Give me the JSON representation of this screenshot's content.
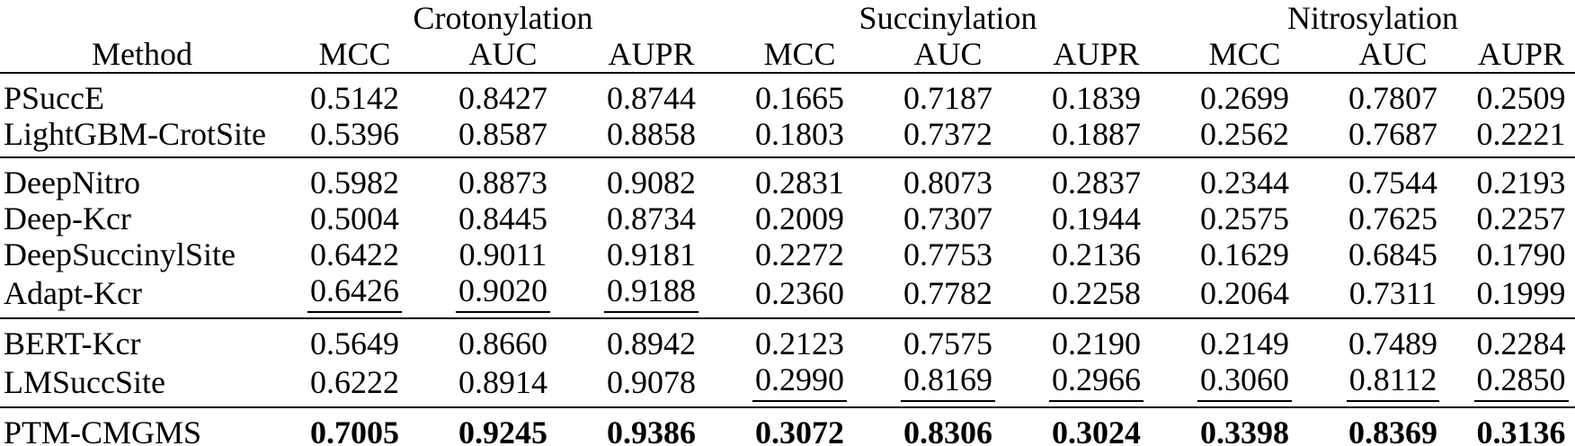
{
  "table": {
    "method_header": "Method",
    "groups": [
      {
        "label": "Crotonylation",
        "metrics": [
          "MCC",
          "AUC",
          "AUPR"
        ]
      },
      {
        "label": "Succinylation",
        "metrics": [
          "MCC",
          "AUC",
          "AUPR"
        ]
      },
      {
        "label": "Nitrosylation",
        "metrics": [
          "MCC",
          "AUC",
          "AUPR"
        ]
      }
    ],
    "metric_headers": [
      "MCC",
      "AUC",
      "AUPR",
      "MCC",
      "AUC",
      "AUPR",
      "MCC",
      "AUC",
      "AUPR"
    ],
    "row_groups": [
      {
        "rows": [
          {
            "method": "PSuccE",
            "values": [
              "0.5142",
              "0.8427",
              "0.8744",
              "0.1665",
              "0.7187",
              "0.1839",
              "0.2699",
              "0.7807",
              "0.2509"
            ],
            "underline_indices": [],
            "bold_values": false
          },
          {
            "method": "LightGBM-CrotSite",
            "values": [
              "0.5396",
              "0.8587",
              "0.8858",
              "0.1803",
              "0.7372",
              "0.1887",
              "0.2562",
              "0.7687",
              "0.2221"
            ],
            "underline_indices": [],
            "bold_values": false
          }
        ]
      },
      {
        "rows": [
          {
            "method": "DeepNitro",
            "values": [
              "0.5982",
              "0.8873",
              "0.9082",
              "0.2831",
              "0.8073",
              "0.2837",
              "0.2344",
              "0.7544",
              "0.2193"
            ],
            "underline_indices": [],
            "bold_values": false
          },
          {
            "method": "Deep-Kcr",
            "values": [
              "0.5004",
              "0.8445",
              "0.8734",
              "0.2009",
              "0.7307",
              "0.1944",
              "0.2575",
              "0.7625",
              "0.2257"
            ],
            "underline_indices": [],
            "bold_values": false
          },
          {
            "method": "DeepSuccinylSite",
            "values": [
              "0.6422",
              "0.9011",
              "0.9181",
              "0.2272",
              "0.7753",
              "0.2136",
              "0.1629",
              "0.6845",
              "0.1790"
            ],
            "underline_indices": [],
            "bold_values": false
          },
          {
            "method": "Adapt-Kcr",
            "values": [
              "0.6426",
              "0.9020",
              "0.9188",
              "0.2360",
              "0.7782",
              "0.2258",
              "0.2064",
              "0.7311",
              "0.1999"
            ],
            "underline_indices": [
              0,
              1,
              2
            ],
            "bold_values": false
          }
        ]
      },
      {
        "rows": [
          {
            "method": "BERT-Kcr",
            "values": [
              "0.5649",
              "0.8660",
              "0.8942",
              "0.2123",
              "0.7575",
              "0.2190",
              "0.2149",
              "0.7489",
              "0.2284"
            ],
            "underline_indices": [],
            "bold_values": false
          },
          {
            "method": "LMSuccSite",
            "values": [
              "0.6222",
              "0.8914",
              "0.9078",
              "0.2990",
              "0.8169",
              "0.2966",
              "0.3060",
              "0.8112",
              "0.2850"
            ],
            "underline_indices": [
              3,
              4,
              5,
              6,
              7,
              8
            ],
            "bold_values": false
          }
        ]
      },
      {
        "rows": [
          {
            "method": "PTM-CMGMS",
            "values": [
              "0.7005",
              "0.9245",
              "0.9386",
              "0.3072",
              "0.8306",
              "0.3024",
              "0.3398",
              "0.8369",
              "0.3136"
            ],
            "underline_indices": [],
            "bold_values": true
          }
        ]
      }
    ]
  },
  "chart_data": {
    "type": "table",
    "title": "",
    "columns": [
      "Method",
      "Crotonylation MCC",
      "Crotonylation AUC",
      "Crotonylation AUPR",
      "Succinylation MCC",
      "Succinylation AUC",
      "Succinylation AUPR",
      "Nitrosylation MCC",
      "Nitrosylation AUC",
      "Nitrosylation AUPR"
    ],
    "rows": [
      [
        "PSuccE",
        0.5142,
        0.8427,
        0.8744,
        0.1665,
        0.7187,
        0.1839,
        0.2699,
        0.7807,
        0.2509
      ],
      [
        "LightGBM-CrotSite",
        0.5396,
        0.8587,
        0.8858,
        0.1803,
        0.7372,
        0.1887,
        0.2562,
        0.7687,
        0.2221
      ],
      [
        "DeepNitro",
        0.5982,
        0.8873,
        0.9082,
        0.2831,
        0.8073,
        0.2837,
        0.2344,
        0.7544,
        0.2193
      ],
      [
        "Deep-Kcr",
        0.5004,
        0.8445,
        0.8734,
        0.2009,
        0.7307,
        0.1944,
        0.2575,
        0.7625,
        0.2257
      ],
      [
        "DeepSuccinylSite",
        0.6422,
        0.9011,
        0.9181,
        0.2272,
        0.7753,
        0.2136,
        0.1629,
        0.6845,
        0.179
      ],
      [
        "Adapt-Kcr",
        0.6426,
        0.902,
        0.9188,
        0.236,
        0.7782,
        0.2258,
        0.2064,
        0.7311,
        0.1999
      ],
      [
        "BERT-Kcr",
        0.5649,
        0.866,
        0.8942,
        0.2123,
        0.7575,
        0.219,
        0.2149,
        0.7489,
        0.2284
      ],
      [
        "LMSuccSite",
        0.6222,
        0.8914,
        0.9078,
        0.299,
        0.8169,
        0.2966,
        0.306,
        0.8112,
        0.285
      ],
      [
        "PTM-CMGMS",
        0.7005,
        0.9245,
        0.9386,
        0.3072,
        0.8306,
        0.3024,
        0.3398,
        0.8369,
        0.3136
      ]
    ]
  }
}
